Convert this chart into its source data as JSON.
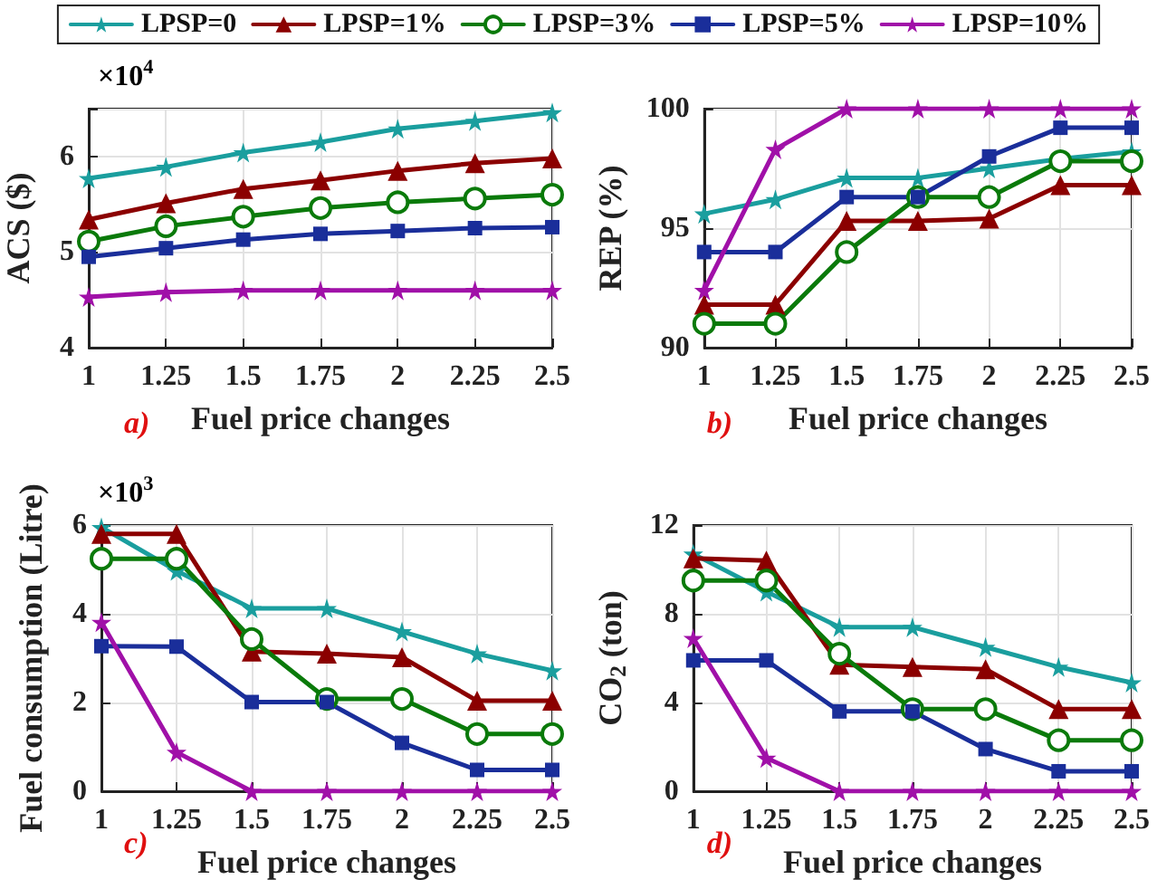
{
  "chart_data": [
    {
      "type": "line",
      "xlabel": "Fuel price changes",
      "ylabel": "ACS ($)",
      "annotations": [
        "a)",
        "×10$^{4}$"
      ],
      "x": [
        1,
        1.25,
        1.5,
        1.75,
        2,
        2.25,
        2.5
      ],
      "xlim": [
        1,
        2.5
      ],
      "xticks": [
        1,
        1.25,
        1.5,
        1.75,
        2,
        2.25,
        2.5
      ],
      "ylim": [
        4,
        6.5
      ],
      "yticks": [
        4,
        5,
        6
      ],
      "grid": true,
      "legend": "top",
      "line_style": "solid",
      "series": [
        {
          "name": "LPSP=0",
          "color": "#1a9e9e",
          "marker": "star",
          "values": [
            5.77,
            5.89,
            6.04,
            6.15,
            6.29,
            6.37,
            6.46
          ]
        },
        {
          "name": "LPSP=1%",
          "color": "#8b0000",
          "marker": "triangle",
          "values": [
            5.34,
            5.51,
            5.66,
            5.75,
            5.85,
            5.93,
            5.98
          ]
        },
        {
          "name": "LPSP=3%",
          "color": "#0a7a0a",
          "marker": "circle",
          "values": [
            5.11,
            5.27,
            5.37,
            5.46,
            5.52,
            5.56,
            5.6
          ]
        },
        {
          "name": "LPSP=5%",
          "color": "#1a2e9a",
          "marker": "square",
          "values": [
            4.95,
            5.04,
            5.13,
            5.19,
            5.22,
            5.25,
            5.26
          ]
        },
        {
          "name": "LPSP=10%",
          "color": "#a010a8",
          "marker": "star",
          "values": [
            4.53,
            4.58,
            4.6,
            4.6,
            4.6,
            4.6,
            4.6
          ]
        }
      ]
    },
    {
      "type": "line",
      "xlabel": "Fuel price changes",
      "ylabel": "REP (%)",
      "annotations": [
        "b)"
      ],
      "x": [
        1,
        1.25,
        1.5,
        1.75,
        2,
        2.25,
        2.5
      ],
      "xlim": [
        1,
        2.5
      ],
      "xticks": [
        1,
        1.25,
        1.5,
        1.75,
        2,
        2.25,
        2.5
      ],
      "ylim": [
        90,
        100
      ],
      "yticks": [
        90,
        95,
        100
      ],
      "grid": true,
      "line_style": "solid",
      "series": [
        {
          "color": "#1a9e9e",
          "marker": "star",
          "values": [
            95.6,
            96.2,
            97.1,
            97.1,
            97.5,
            97.9,
            98.2
          ]
        },
        {
          "color": "#8b0000",
          "marker": "triangle",
          "values": [
            91.8,
            91.8,
            95.3,
            95.3,
            95.4,
            96.8,
            96.8
          ]
        },
        {
          "color": "#0a7a0a",
          "marker": "circle",
          "values": [
            91.0,
            91.0,
            94.0,
            96.3,
            96.3,
            97.8,
            97.8
          ]
        },
        {
          "color": "#1a2e9a",
          "marker": "square",
          "values": [
            94.0,
            94.0,
            96.3,
            96.3,
            98.0,
            99.2,
            99.2
          ]
        },
        {
          "color": "#a010a8",
          "marker": "star",
          "values": [
            92.4,
            98.3,
            100,
            100,
            100,
            100,
            100
          ]
        }
      ]
    },
    {
      "type": "line",
      "xlabel": "Fuel price changes",
      "ylabel": "Fuel consumption (Litre)",
      "annotations": [
        "c)",
        "×10$^{3}$"
      ],
      "x": [
        1,
        1.25,
        1.5,
        1.75,
        2,
        2.25,
        2.5
      ],
      "xlim": [
        1,
        2.5
      ],
      "xticks": [
        1,
        1.25,
        1.5,
        1.75,
        2,
        2.25,
        2.5
      ],
      "ylim": [
        0,
        6
      ],
      "yticks": [
        0,
        2,
        4,
        6
      ],
      "grid": true,
      "line_style": "solid",
      "series": [
        {
          "color": "#1a9e9e",
          "marker": "star",
          "values": [
            5.95,
            4.97,
            4.12,
            4.12,
            3.6,
            3.1,
            2.72
          ]
        },
        {
          "color": "#8b0000",
          "marker": "triangle",
          "values": [
            5.8,
            5.8,
            3.15,
            3.1,
            3.02,
            2.04,
            2.04
          ]
        },
        {
          "color": "#0a7a0a",
          "marker": "circle",
          "values": [
            5.24,
            5.24,
            3.43,
            2.08,
            2.08,
            1.29,
            1.29
          ]
        },
        {
          "color": "#1a2e9a",
          "marker": "square",
          "values": [
            3.27,
            3.26,
            2.01,
            2.01,
            1.09,
            0.48,
            0.48
          ]
        },
        {
          "color": "#a010a8",
          "marker": "star",
          "values": [
            3.81,
            0.88,
            0,
            0,
            0,
            0,
            0
          ]
        }
      ]
    },
    {
      "type": "line",
      "xlabel": "Fuel price changes",
      "ylabel": "CO$_{2}$ (ton)",
      "annotations": [
        "d)"
      ],
      "x": [
        1,
        1.25,
        1.5,
        1.75,
        2,
        2.25,
        2.5
      ],
      "xlim": [
        1,
        2.5
      ],
      "xticks": [
        1,
        1.25,
        1.5,
        1.75,
        2,
        2.25,
        2.5
      ],
      "ylim": [
        0,
        12
      ],
      "yticks": [
        0,
        4,
        8,
        12
      ],
      "grid": true,
      "line_style": "solid",
      "series": [
        {
          "color": "#1a9e9e",
          "marker": "star",
          "values": [
            10.7,
            9.0,
            7.4,
            7.4,
            6.5,
            5.6,
            4.9
          ]
        },
        {
          "color": "#8b0000",
          "marker": "triangle",
          "values": [
            10.5,
            10.4,
            5.7,
            5.6,
            5.5,
            3.7,
            3.7
          ]
        },
        {
          "color": "#0a7a0a",
          "marker": "circle",
          "values": [
            9.5,
            9.5,
            6.2,
            3.7,
            3.7,
            2.3,
            2.3
          ]
        },
        {
          "color": "#1a2e9a",
          "marker": "square",
          "values": [
            5.9,
            5.9,
            3.6,
            3.6,
            1.9,
            0.9,
            0.9
          ]
        },
        {
          "color": "#a010a8",
          "marker": "star",
          "values": [
            6.9,
            1.5,
            0,
            0,
            0,
            0,
            0
          ]
        }
      ]
    }
  ]
}
